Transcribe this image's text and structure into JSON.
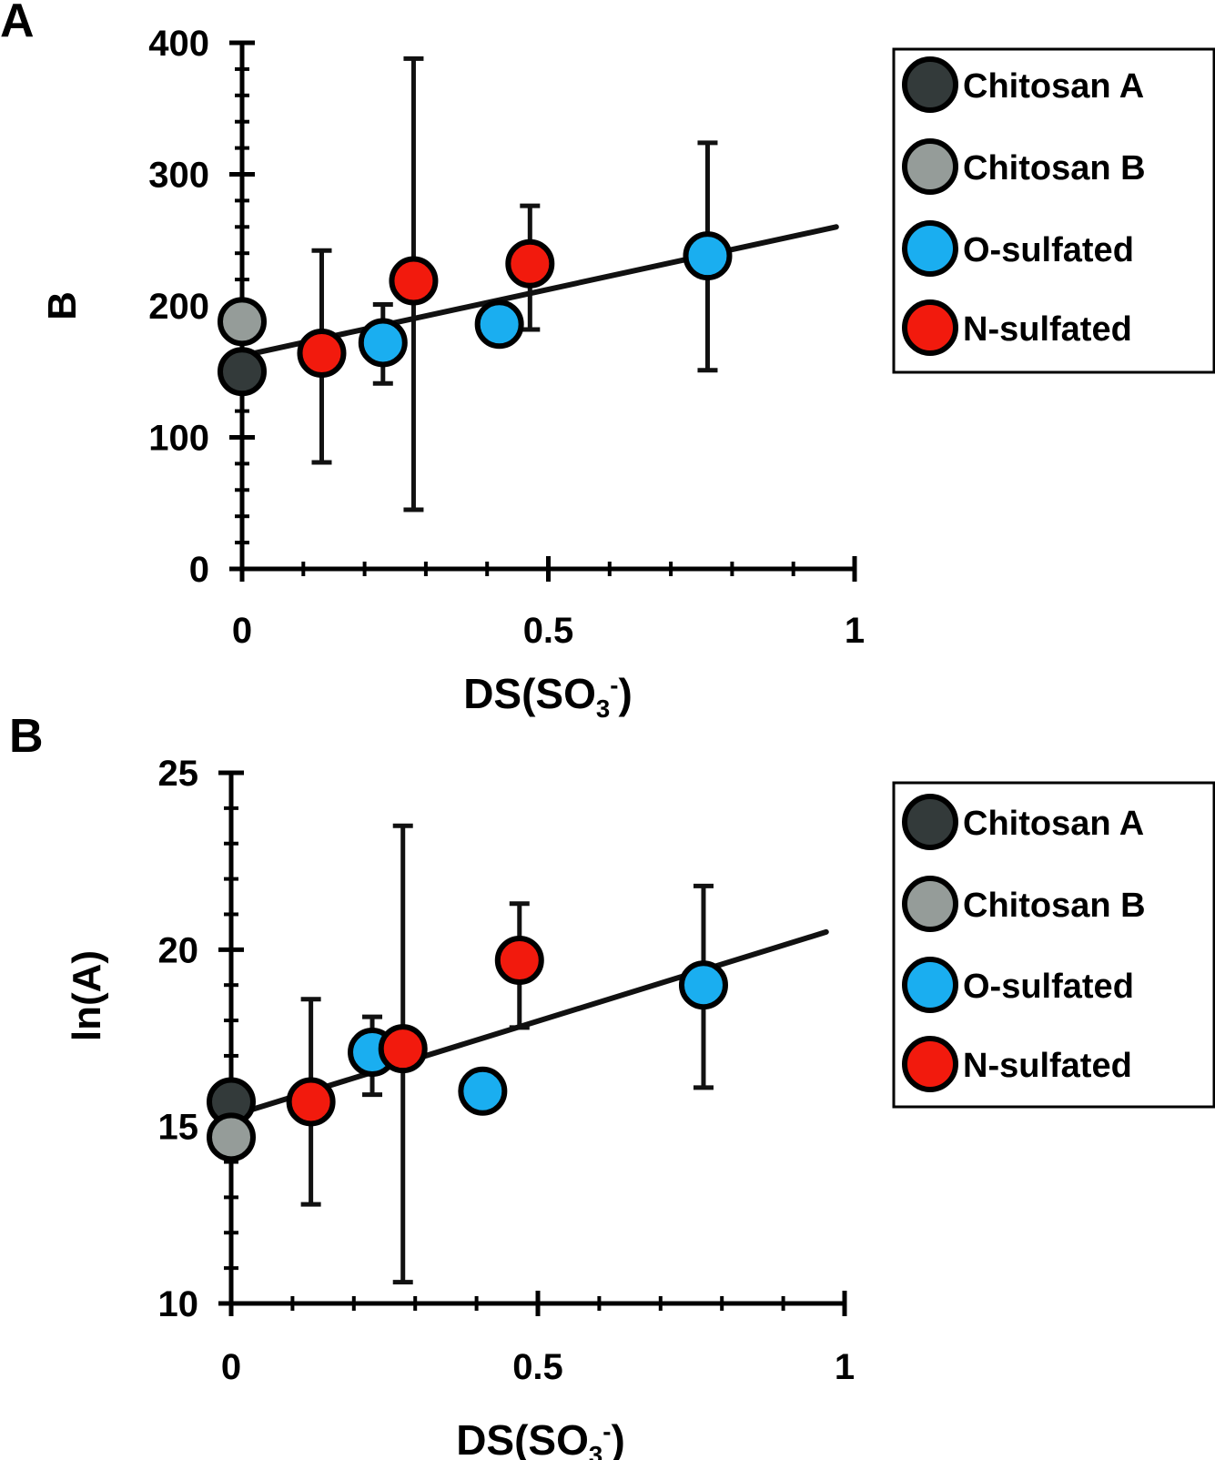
{
  "chart_data": [
    {
      "type": "scatter",
      "panel_label": "A",
      "xlabel": {
        "main": "DS(SO",
        "sub": "3",
        "sup": "-",
        "close": ")"
      },
      "ylabel": "B",
      "xlim": [
        0,
        1
      ],
      "ylim": [
        0,
        400
      ],
      "xticks": [
        0,
        0.5,
        1
      ],
      "xtick_labels": [
        "0",
        "0.5",
        "1"
      ],
      "yticks": [
        0,
        100,
        200,
        300,
        400
      ],
      "ytick_labels": [
        "0",
        "100",
        "200",
        "300",
        "400"
      ],
      "grid": false,
      "legend_position": "right",
      "series": [
        {
          "name": "Chitosan A",
          "color": "#333a3a",
          "points": [
            {
              "x": 0.0,
              "y": 150,
              "err_low": null,
              "err_high": null
            }
          ]
        },
        {
          "name": "Chitosan B",
          "color": "#959c99",
          "points": [
            {
              "x": 0.0,
              "y": 188,
              "err_low": null,
              "err_high": null
            }
          ]
        },
        {
          "name": "O-sulfated",
          "color": "#1aaef0",
          "points": [
            {
              "x": 0.23,
              "y": 172,
              "err_low": 141,
              "err_high": 201
            },
            {
              "x": 0.42,
              "y": 186,
              "err_low": null,
              "err_high": null
            },
            {
              "x": 0.76,
              "y": 238,
              "err_low": 151,
              "err_high": 324
            }
          ]
        },
        {
          "name": "N-sulfated",
          "color": "#f21a0d",
          "points": [
            {
              "x": 0.13,
              "y": 164,
              "err_low": 81,
              "err_high": 242
            },
            {
              "x": 0.28,
              "y": 219,
              "err_low": 45,
              "err_high": 388
            },
            {
              "x": 0.47,
              "y": 232,
              "err_low": 182,
              "err_high": 276
            }
          ]
        }
      ],
      "fit_line": {
        "x": [
          0,
          0.97
        ],
        "y": [
          162,
          260
        ]
      }
    },
    {
      "type": "scatter",
      "panel_label": "B",
      "xlabel": {
        "main": "DS(SO",
        "sub": "3",
        "sup": "-",
        "close": ")"
      },
      "ylabel": "ln(A)",
      "xlim": [
        0,
        1
      ],
      "ylim": [
        10,
        25
      ],
      "xticks": [
        0,
        0.5,
        1
      ],
      "xtick_labels": [
        "0",
        "0.5",
        "1"
      ],
      "yticks": [
        10,
        15,
        20,
        25
      ],
      "ytick_labels": [
        "10",
        "15",
        "20",
        "25"
      ],
      "grid": false,
      "legend_position": "right",
      "series": [
        {
          "name": "Chitosan A",
          "color": "#333a3a",
          "points": [
            {
              "x": 0.0,
              "y": 15.7,
              "err_low": null,
              "err_high": null
            }
          ]
        },
        {
          "name": "Chitosan B",
          "color": "#959c99",
          "points": [
            {
              "x": 0.0,
              "y": 14.7,
              "err_low": null,
              "err_high": null
            }
          ]
        },
        {
          "name": "O-sulfated",
          "color": "#1aaef0",
          "points": [
            {
              "x": 0.23,
              "y": 17.1,
              "err_low": 15.9,
              "err_high": 18.1
            },
            {
              "x": 0.41,
              "y": 16.0,
              "err_low": null,
              "err_high": null
            },
            {
              "x": 0.77,
              "y": 19.0,
              "err_low": 16.1,
              "err_high": 21.8
            }
          ]
        },
        {
          "name": "N-sulfated",
          "color": "#f21a0d",
          "points": [
            {
              "x": 0.13,
              "y": 15.7,
              "err_low": 12.8,
              "err_high": 18.6
            },
            {
              "x": 0.28,
              "y": 17.2,
              "err_low": 10.6,
              "err_high": 23.5
            },
            {
              "x": 0.47,
              "y": 19.7,
              "err_low": 17.8,
              "err_high": 21.3
            }
          ]
        }
      ],
      "fit_line": {
        "x": [
          0,
          0.97
        ],
        "y": [
          15.3,
          20.5
        ]
      }
    }
  ]
}
